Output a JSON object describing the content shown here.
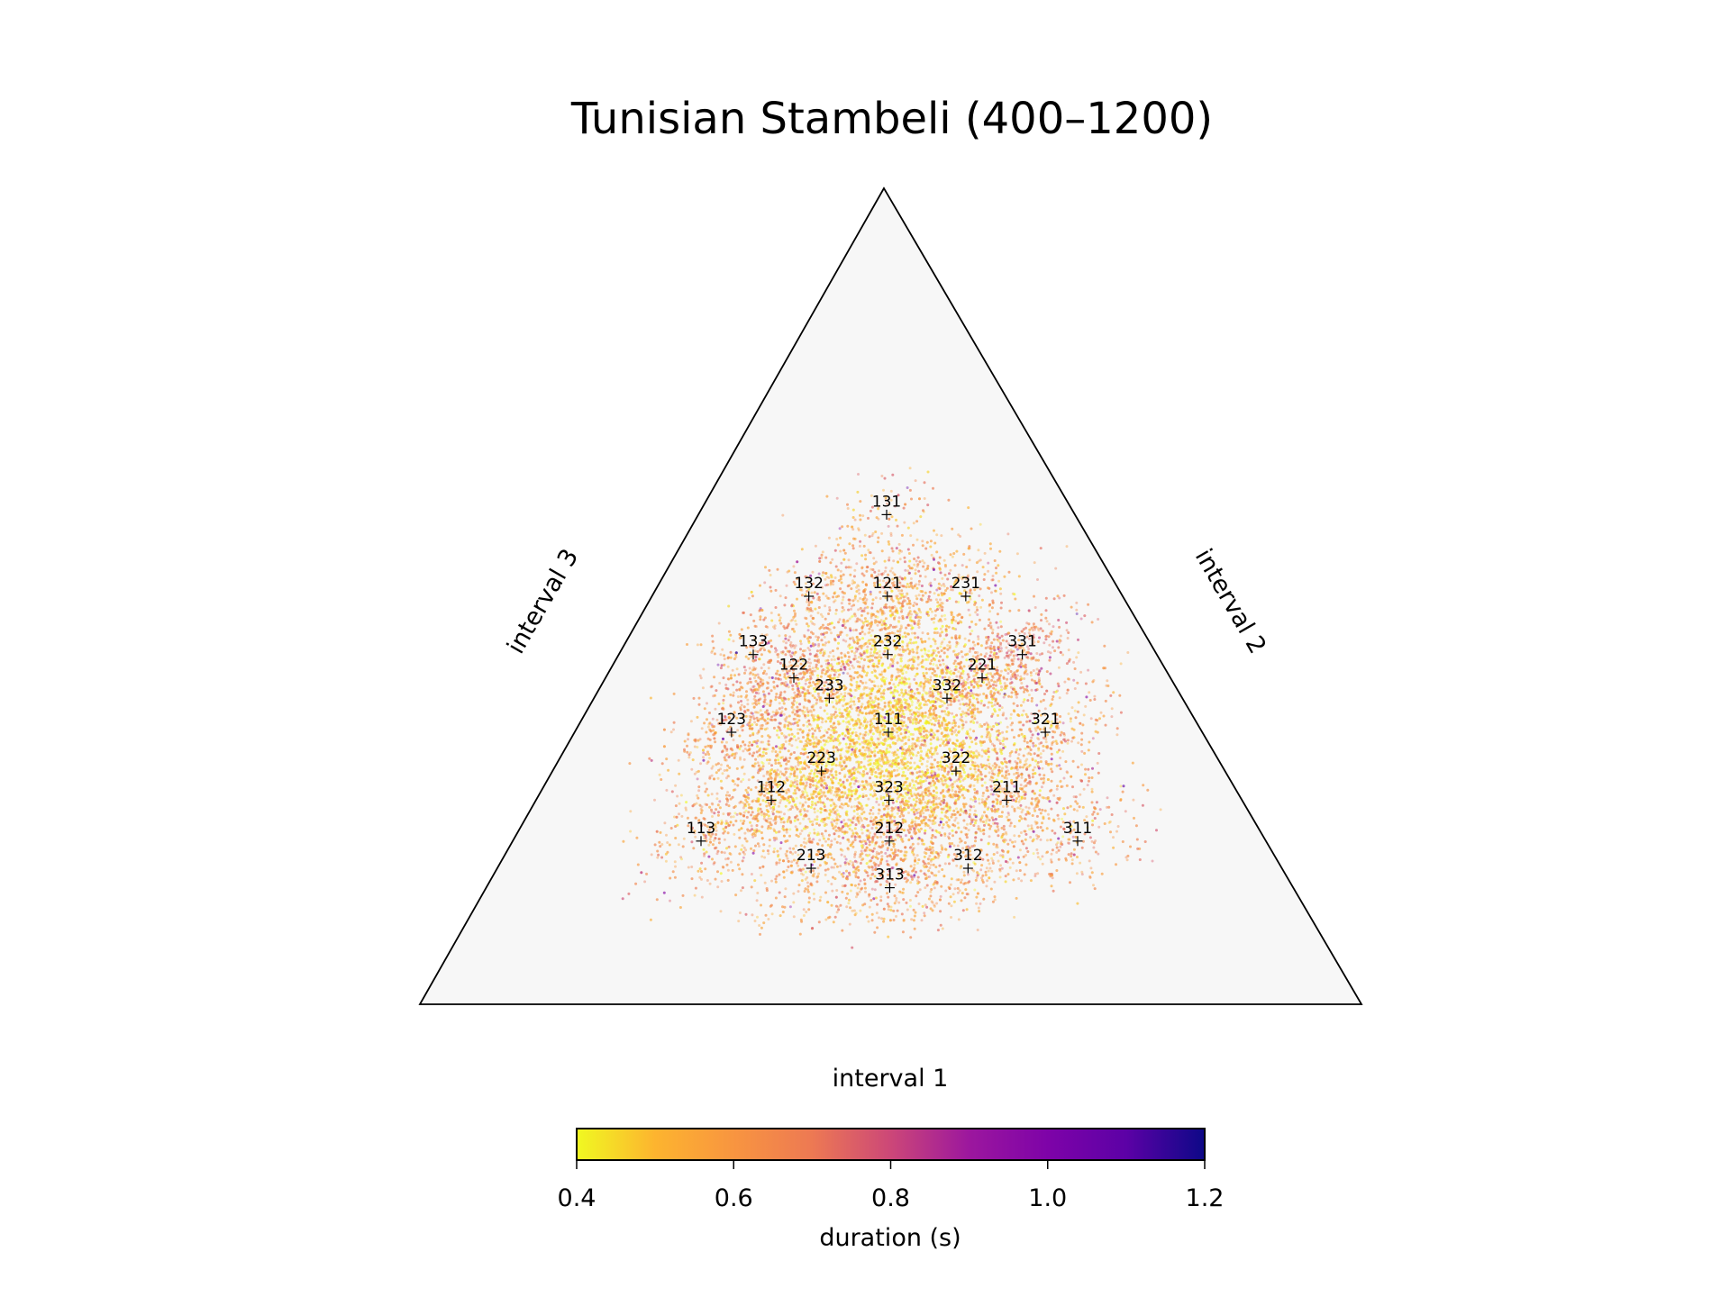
{
  "chart_data": {
    "type": "scatter",
    "subtype": "ternary",
    "title": "Tunisian Stambeli (400–1200)",
    "axes": {
      "bottom": "interval 1",
      "right": "interval 2",
      "left": "interval 3"
    },
    "colorbar": {
      "label": "duration (s)",
      "colormap": "plasma_r",
      "min": 0.4,
      "max": 1.2,
      "ticks": [
        "0.4",
        "0.6",
        "0.8",
        "1.0",
        "1.2"
      ],
      "colors": [
        "#f0f921",
        "#fdb42f",
        "#f89540",
        "#ed7953",
        "#cc4778",
        "#9c179e",
        "#7e03a8",
        "#5c01a6",
        "#0d0887"
      ]
    },
    "background_color": "#f7f7f7",
    "rhythm_markers": [
      {
        "label": "131",
        "ratio": [
          1,
          3,
          1
        ]
      },
      {
        "label": "132",
        "ratio": [
          1,
          3,
          2
        ]
      },
      {
        "label": "121",
        "ratio": [
          1,
          2,
          1
        ]
      },
      {
        "label": "231",
        "ratio": [
          2,
          3,
          1
        ]
      },
      {
        "label": "133",
        "ratio": [
          1,
          3,
          3
        ]
      },
      {
        "label": "232",
        "ratio": [
          2,
          3,
          2
        ]
      },
      {
        "label": "331",
        "ratio": [
          3,
          3,
          1
        ]
      },
      {
        "label": "122",
        "ratio": [
          1,
          2,
          2
        ]
      },
      {
        "label": "221",
        "ratio": [
          2,
          2,
          1
        ]
      },
      {
        "label": "233",
        "ratio": [
          2,
          3,
          3
        ]
      },
      {
        "label": "332",
        "ratio": [
          3,
          3,
          2
        ]
      },
      {
        "label": "123",
        "ratio": [
          1,
          2,
          3
        ]
      },
      {
        "label": "111",
        "ratio": [
          1,
          1,
          1
        ]
      },
      {
        "label": "321",
        "ratio": [
          3,
          2,
          1
        ]
      },
      {
        "label": "223",
        "ratio": [
          2,
          2,
          3
        ]
      },
      {
        "label": "322",
        "ratio": [
          3,
          2,
          2
        ]
      },
      {
        "label": "112",
        "ratio": [
          1,
          1,
          2
        ]
      },
      {
        "label": "323",
        "ratio": [
          3,
          2,
          3
        ]
      },
      {
        "label": "211",
        "ratio": [
          2,
          1,
          1
        ]
      },
      {
        "label": "113",
        "ratio": [
          1,
          1,
          3
        ]
      },
      {
        "label": "212",
        "ratio": [
          2,
          1,
          2
        ]
      },
      {
        "label": "311",
        "ratio": [
          3,
          1,
          1
        ]
      },
      {
        "label": "213",
        "ratio": [
          2,
          1,
          3
        ]
      },
      {
        "label": "312",
        "ratio": [
          3,
          1,
          2
        ]
      },
      {
        "label": "313",
        "ratio": [
          3,
          1,
          3
        ]
      }
    ],
    "density_clusters": [
      {
        "center": [
          1,
          1,
          1
        ],
        "weight": 3.0,
        "spread": 0.045,
        "duration": 0.45
      },
      {
        "center": [
          2,
          2,
          3
        ],
        "weight": 1.8,
        "spread": 0.04,
        "duration": 0.5
      },
      {
        "center": [
          3,
          2,
          2
        ],
        "weight": 1.8,
        "spread": 0.04,
        "duration": 0.5
      },
      {
        "center": [
          2,
          3,
          2
        ],
        "weight": 1.8,
        "spread": 0.04,
        "duration": 0.5
      },
      {
        "center": [
          3,
          2,
          3
        ],
        "weight": 1.6,
        "spread": 0.04,
        "duration": 0.5
      },
      {
        "center": [
          1,
          1,
          2
        ],
        "weight": 1.6,
        "spread": 0.04,
        "duration": 0.6
      },
      {
        "center": [
          2,
          1,
          1
        ],
        "weight": 1.6,
        "spread": 0.04,
        "duration": 0.6
      },
      {
        "center": [
          1,
          2,
          1
        ],
        "weight": 1.6,
        "spread": 0.04,
        "duration": 0.6
      },
      {
        "center": [
          1,
          2,
          2
        ],
        "weight": 1.2,
        "spread": 0.035,
        "duration": 0.65
      },
      {
        "center": [
          2,
          2,
          1
        ],
        "weight": 1.2,
        "spread": 0.035,
        "duration": 0.65
      },
      {
        "center": [
          2,
          1,
          2
        ],
        "weight": 1.2,
        "spread": 0.035,
        "duration": 0.65
      },
      {
        "center": [
          2,
          3,
          3
        ],
        "weight": 1.0,
        "spread": 0.035,
        "duration": 0.55
      },
      {
        "center": [
          3,
          3,
          2
        ],
        "weight": 1.0,
        "spread": 0.035,
        "duration": 0.55
      },
      {
        "center": [
          3,
          1,
          2
        ],
        "weight": 0.8,
        "spread": 0.035,
        "duration": 0.6
      },
      {
        "center": [
          2,
          1,
          3
        ],
        "weight": 0.8,
        "spread": 0.035,
        "duration": 0.6
      },
      {
        "center": [
          1,
          2,
          3
        ],
        "weight": 0.9,
        "spread": 0.035,
        "duration": 0.62
      },
      {
        "center": [
          3,
          2,
          1
        ],
        "weight": 0.7,
        "spread": 0.035,
        "duration": 0.62
      },
      {
        "center": [
          1,
          3,
          2
        ],
        "weight": 0.6,
        "spread": 0.035,
        "duration": 0.62
      },
      {
        "center": [
          2,
          3,
          1
        ],
        "weight": 0.5,
        "spread": 0.035,
        "duration": 0.62
      },
      {
        "center": [
          3,
          3,
          1
        ],
        "weight": 0.6,
        "spread": 0.03,
        "duration": 0.7
      },
      {
        "center": [
          1,
          3,
          3
        ],
        "weight": 0.5,
        "spread": 0.03,
        "duration": 0.62
      },
      {
        "center": [
          1,
          1,
          3
        ],
        "weight": 0.5,
        "spread": 0.035,
        "duration": 0.62
      },
      {
        "center": [
          3,
          1,
          1
        ],
        "weight": 0.5,
        "spread": 0.035,
        "duration": 0.62
      },
      {
        "center": [
          3,
          1,
          3
        ],
        "weight": 0.5,
        "spread": 0.03,
        "duration": 0.62
      },
      {
        "center": [
          1,
          3,
          1
        ],
        "weight": 0.3,
        "spread": 0.03,
        "duration": 0.62
      }
    ],
    "point_count": 14000
  }
}
